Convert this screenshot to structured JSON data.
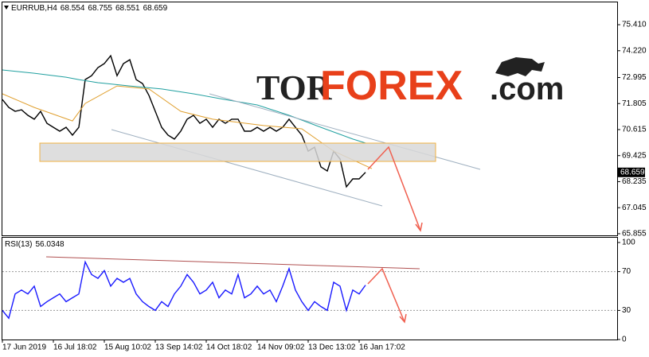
{
  "chart_data": [
    {
      "type": "line",
      "title": "EURRUB,H4",
      "ohlc": [
        68.554,
        68.755,
        68.551,
        68.659
      ],
      "logo": [
        "TOR",
        "FOREX",
        ".com"
      ],
      "xlim": [
        0,
        96
      ],
      "ylim": [
        65.78,
        76.43
      ],
      "xticks": [
        {
          "value": 0,
          "label": "17 Jun 2019"
        },
        {
          "value": 8,
          "label": "16 Jul 18:02"
        },
        {
          "value": 16,
          "label": "15 Aug 10:02"
        },
        {
          "value": 24,
          "label": "13 Sep 14:02"
        },
        {
          "value": 32,
          "label": "14 Oct 18:02"
        },
        {
          "value": 40,
          "label": "14 Nov 09:02"
        },
        {
          "value": 48,
          "label": "13 Dec 13:02"
        },
        {
          "value": 56,
          "label": "16 Jan 17:02"
        }
      ],
      "yticks": [
        {
          "value": 75.41,
          "label": "75.410"
        },
        {
          "value": 74.22,
          "label": "74.220"
        },
        72.995,
        71.805,
        70.615,
        69.425,
        68.235,
        67.045,
        65.855
      ],
      "series": [
        {
          "color": "#000000",
          "values": [
            71.99,
            71.63,
            71.45,
            71.52,
            71.27,
            71.09,
            71.45,
            70.9,
            70.72,
            70.54,
            70.72,
            70.36,
            70.72,
            72.9,
            73.08,
            73.45,
            73.63,
            73.99,
            73.08,
            73.63,
            73.81,
            72.9,
            72.72,
            72.18,
            71.45,
            70.72,
            70.36,
            70.18,
            70.54,
            71.09,
            71.27,
            70.9,
            71.09,
            70.72,
            71.09,
            70.9,
            71.09,
            71.09,
            70.54,
            70.54,
            70.72,
            70.54,
            70.72,
            70.54,
            70.72,
            71.09,
            70.72,
            70.36,
            69.63,
            69.81,
            68.91,
            68.72,
            69.63,
            69.27,
            68.0,
            68.36,
            68.36,
            68.66
          ]
        },
        {
          "color": "#e0a030",
          "x": [
            0,
            5,
            11,
            13,
            18,
            23,
            28,
            33,
            41,
            47,
            52,
            58
          ],
          "values": [
            72.25,
            71.63,
            71.01,
            71.81,
            72.61,
            72.47,
            71.45,
            71.09,
            70.8,
            70.65,
            69.63,
            68.83
          ]
        },
        {
          "color": "#20a0a0",
          "x": [
            0,
            5,
            10,
            12,
            15,
            20,
            25,
            30,
            35,
            40,
            45,
            50,
            55,
            57
          ],
          "values": [
            73.34,
            73.19,
            73.01,
            72.9,
            72.76,
            72.61,
            72.47,
            72.25,
            71.99,
            71.74,
            71.27,
            70.72,
            70.18,
            70.0
          ]
        }
      ]
    },
    {
      "type": "line",
      "title": "RSI(13)",
      "last": 56.0348,
      "xlim": [
        0,
        96
      ],
      "ylim": [
        0,
        100
      ],
      "yticks": [
        100,
        70,
        30,
        0
      ],
      "series": [
        {
          "color": "#1a1aff",
          "values": [
            30,
            22,
            47,
            51,
            47,
            55,
            34,
            39,
            43,
            47,
            39,
            43,
            47,
            80,
            67,
            63,
            71,
            55,
            63,
            59,
            63,
            47,
            39,
            34,
            30,
            39,
            34,
            47,
            55,
            67,
            59,
            47,
            51,
            59,
            43,
            51,
            47,
            67,
            43,
            47,
            55,
            47,
            51,
            39,
            55,
            73,
            51,
            39,
            30,
            39,
            34,
            30,
            59,
            55,
            30,
            51,
            47,
            56.0348
          ]
        }
      ]
    }
  ]
}
